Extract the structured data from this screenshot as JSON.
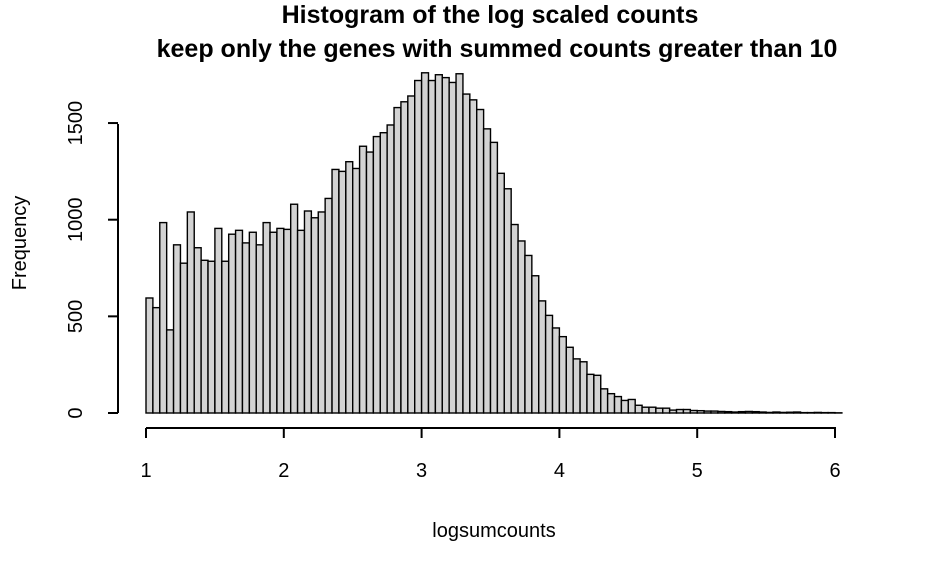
{
  "chart_data": {
    "type": "bar",
    "title_line1": "Histogram of the log scaled counts",
    "title_line2": "keep only the genes with summed counts greater than 10",
    "xlabel": "logsumcounts",
    "ylabel": "Frequency",
    "xlim": [
      1,
      6.05
    ],
    "ylim": [
      0,
      1760
    ],
    "x_ticks": [
      1,
      2,
      3,
      4,
      5,
      6
    ],
    "y_ticks": [
      0,
      500,
      1000,
      1500
    ],
    "bin_start": 1.0,
    "bin_width": 0.05,
    "bar_fill": "#d3d3d3",
    "bar_outline": "#000000",
    "values": [
      595,
      545,
      985,
      430,
      870,
      775,
      1040,
      855,
      790,
      785,
      955,
      785,
      925,
      945,
      880,
      935,
      870,
      985,
      935,
      955,
      950,
      1080,
      945,
      1045,
      1010,
      1040,
      1110,
      1260,
      1250,
      1300,
      1265,
      1380,
      1350,
      1430,
      1450,
      1490,
      1580,
      1610,
      1640,
      1720,
      1760,
      1720,
      1750,
      1735,
      1710,
      1755,
      1650,
      1620,
      1570,
      1470,
      1400,
      1240,
      1160,
      975,
      890,
      815,
      710,
      580,
      505,
      440,
      395,
      340,
      280,
      265,
      200,
      195,
      125,
      100,
      85,
      65,
      70,
      40,
      30,
      30,
      25,
      25,
      15,
      18,
      18,
      13,
      12,
      10,
      10,
      8,
      7,
      5,
      7,
      8,
      7,
      5,
      3,
      5,
      3,
      4,
      5,
      2,
      2,
      3,
      2,
      2,
      1
    ]
  }
}
